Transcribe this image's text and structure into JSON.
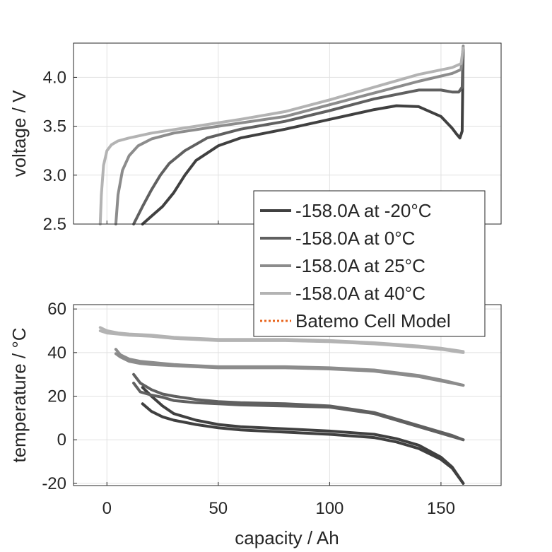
{
  "colors": {
    "m20": "#404040",
    "z0": "#606060",
    "t25": "#8c8c8c",
    "t40": "#b3b3b3",
    "model": "#e8651e",
    "grid": "#e1e1e1",
    "axis": "#262626"
  },
  "chart_data": [
    {
      "type": "line",
      "ylabel": "voltage / V",
      "xlim": [
        -15,
        177
      ],
      "ylim": [
        2.5,
        4.35
      ],
      "yticks": [
        "2.5",
        "3.0",
        "3.5",
        "4.0"
      ],
      "xticks": [
        0,
        50,
        100,
        150
      ],
      "grid": true,
      "series": [
        {
          "name": "-158.0A at -20°C",
          "color": "m20",
          "x": [
            16,
            20,
            25,
            30,
            35,
            40,
            50,
            60,
            80,
            100,
            120,
            130,
            140,
            150,
            155,
            157,
            158.5,
            159.5,
            160
          ],
          "y": [
            2.5,
            2.58,
            2.68,
            2.82,
            3.0,
            3.15,
            3.3,
            3.38,
            3.47,
            3.57,
            3.67,
            3.71,
            3.7,
            3.6,
            3.48,
            3.42,
            3.38,
            3.45,
            4.3
          ]
        },
        {
          "name": "-158.0A at 0°C",
          "color": "z0",
          "x": [
            12,
            16,
            20,
            24,
            28,
            35,
            45,
            60,
            80,
            100,
            120,
            140,
            150,
            155,
            158,
            159.5,
            160
          ],
          "y": [
            2.5,
            2.68,
            2.85,
            3.0,
            3.12,
            3.25,
            3.38,
            3.47,
            3.55,
            3.66,
            3.78,
            3.87,
            3.87,
            3.85,
            3.85,
            3.9,
            4.3
          ]
        },
        {
          "name": "-158.0A at 25°C",
          "color": "t25",
          "x": [
            4,
            5,
            7,
            10,
            14,
            20,
            30,
            50,
            80,
            100,
            120,
            140,
            155,
            159,
            160
          ],
          "y": [
            2.5,
            2.8,
            3.05,
            3.2,
            3.3,
            3.37,
            3.43,
            3.5,
            3.6,
            3.72,
            3.84,
            3.96,
            4.04,
            4.08,
            4.32
          ]
        },
        {
          "name": "-158.0A at 40°C",
          "color": "t40",
          "x": [
            -3,
            -2.5,
            -1.5,
            0,
            2,
            5,
            10,
            20,
            40,
            60,
            80,
            100,
            120,
            140,
            155,
            159,
            160
          ],
          "y": [
            2.5,
            2.8,
            3.1,
            3.25,
            3.31,
            3.35,
            3.38,
            3.43,
            3.5,
            3.57,
            3.65,
            3.77,
            3.9,
            4.03,
            4.1,
            4.14,
            4.3
          ]
        }
      ]
    },
    {
      "type": "line",
      "xlabel": "capacity / Ah",
      "ylabel": "temperature / °C",
      "xlim": [
        -15,
        177
      ],
      "ylim": [
        -21,
        62
      ],
      "yticks": [
        "-20",
        "0",
        "20",
        "40",
        "60"
      ],
      "xticks": [
        "0",
        "50",
        "100",
        "150"
      ],
      "grid": true,
      "series": [
        {
          "name": "-158.0A at -20°C",
          "color": "m20",
          "x": [
            16,
            20,
            25,
            30,
            40,
            50,
            60,
            80,
            100,
            120,
            130,
            140,
            150,
            155,
            160
          ],
          "y": [
            16.5,
            13,
            10.5,
            9,
            7,
            5.5,
            4.5,
            3.5,
            2.5,
            1,
            -1,
            -4,
            -9,
            -13,
            -20
          ]
        },
        {
          "name": "-158.0A at -20°C",
          "color": "m20",
          "x": [
            16,
            20,
            25,
            30,
            40,
            50,
            60,
            80,
            100,
            120,
            130,
            140,
            150,
            155,
            160
          ],
          "y": [
            24,
            20,
            15.5,
            12,
            9,
            7,
            6,
            5,
            4,
            2.5,
            0.5,
            -2.5,
            -8,
            -12.5,
            -20
          ]
        },
        {
          "name": "-158.0A at 0°C",
          "color": "z0",
          "x": [
            12,
            15,
            20,
            25,
            30,
            40,
            50,
            60,
            80,
            100,
            120,
            130,
            140,
            150,
            155,
            160
          ],
          "y": [
            26,
            22,
            20.5,
            19.5,
            18,
            17,
            16.5,
            16,
            15.5,
            15,
            12,
            9,
            6,
            3,
            1.5,
            0
          ]
        },
        {
          "name": "-158.0A at 0°C",
          "color": "z0",
          "x": [
            12,
            15,
            20,
            25,
            30,
            40,
            50,
            60,
            80,
            100,
            120,
            130,
            140,
            150,
            155,
            160
          ],
          "y": [
            30,
            26,
            23,
            21,
            20,
            18.5,
            17.5,
            17,
            16.5,
            15.5,
            12.5,
            9.5,
            6.5,
            3.5,
            2,
            0
          ]
        },
        {
          "name": "-158.0A at 25°C",
          "color": "t25",
          "x": [
            4,
            6,
            10,
            15,
            20,
            30,
            40,
            50,
            60,
            80,
            100,
            120,
            140,
            150,
            160
          ],
          "y": [
            39.5,
            38,
            36,
            35,
            34.5,
            34,
            33.5,
            33,
            33,
            33,
            32.5,
            31.5,
            29,
            27,
            25
          ]
        },
        {
          "name": "-158.0A at 25°C",
          "color": "t25",
          "x": [
            4,
            6,
            10,
            15,
            20,
            30,
            40,
            50,
            60,
            80,
            100,
            120,
            140,
            150,
            160
          ],
          "y": [
            41.5,
            39,
            37,
            36,
            35.5,
            34.5,
            34,
            33.5,
            33.5,
            33.5,
            33,
            32,
            29.5,
            27.5,
            25
          ]
        },
        {
          "name": "-158.0A at 40°C",
          "color": "t40",
          "x": [
            -3,
            0,
            5,
            10,
            20,
            30,
            40,
            50,
            60,
            80,
            100,
            120,
            140,
            150,
            160
          ],
          "y": [
            50,
            49,
            48.5,
            48,
            47.5,
            46.5,
            46,
            45.5,
            45.5,
            45.5,
            45,
            44,
            42.5,
            41.5,
            40
          ]
        },
        {
          "name": "-158.0A at 40°C",
          "color": "t40",
          "x": [
            -3,
            0,
            5,
            10,
            20,
            30,
            40,
            50,
            60,
            80,
            100,
            120,
            140,
            150,
            160
          ],
          "y": [
            51.5,
            50,
            49,
            48.5,
            48,
            47,
            46.5,
            46,
            46,
            46,
            45.5,
            44.5,
            43,
            42,
            40.5
          ]
        }
      ]
    }
  ],
  "legend": {
    "placement": "right, between panels",
    "entries": [
      {
        "label": "-158.0A at -20°C",
        "color": "m20",
        "style": "solid"
      },
      {
        "label": "-158.0A at 0°C",
        "color": "z0",
        "style": "solid"
      },
      {
        "label": "-158.0A at 25°C",
        "color": "t25",
        "style": "solid"
      },
      {
        "label": "-158.0A at 40°C",
        "color": "t40",
        "style": "solid"
      },
      {
        "label": "Batemo Cell Model",
        "color": "model",
        "style": "dotted"
      }
    ]
  }
}
